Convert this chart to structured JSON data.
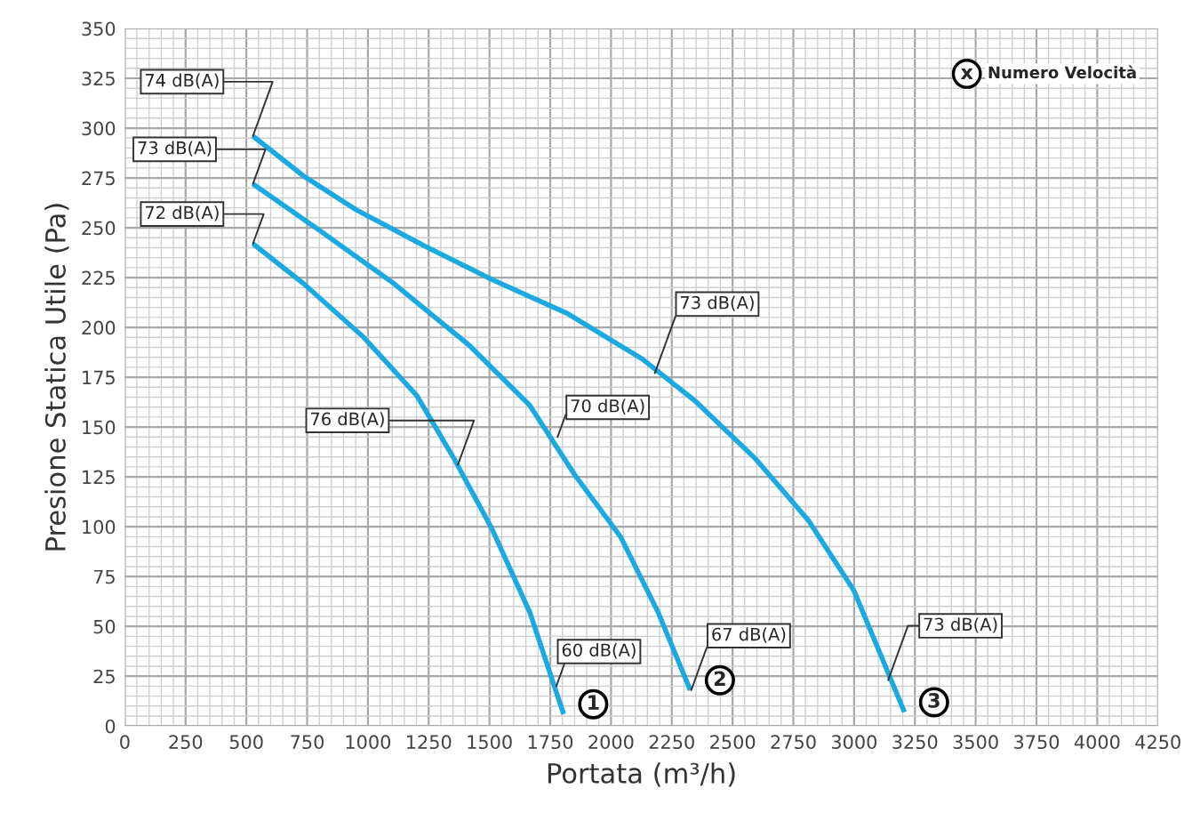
{
  "chart_data": {
    "type": "line",
    "xlabel": "Portata (m³/h)",
    "ylabel": "Presione Statica Utile (Pa)",
    "xlim": [
      0,
      4250
    ],
    "ylim": [
      0,
      350
    ],
    "xticks": [
      0,
      250,
      500,
      750,
      1000,
      1250,
      1500,
      1750,
      2000,
      2250,
      2500,
      2750,
      3000,
      3250,
      3500,
      3750,
      4000,
      4250
    ],
    "yticks": [
      0,
      25,
      50,
      75,
      100,
      125,
      150,
      175,
      200,
      225,
      250,
      275,
      300,
      325,
      350
    ],
    "grid": true,
    "marker": "none",
    "line_style": "solid",
    "series": [
      {
        "name": "1",
        "color": "#1aa9e0",
        "x": [
          527,
          735,
          983,
          1200,
          1355,
          1510,
          1666,
          1805
        ],
        "values": [
          242,
          222,
          195,
          166,
          134,
          99,
          57,
          6
        ]
      },
      {
        "name": "2",
        "color": "#1aa9e0",
        "x": [
          527,
          797,
          1107,
          1417,
          1665,
          1851,
          2039,
          2194,
          2326
        ],
        "values": [
          272,
          249,
          222,
          191,
          161,
          126,
          95,
          57,
          18
        ]
      },
      {
        "name": "3",
        "color": "#1aa9e0",
        "x": [
          527,
          735,
          952,
          1231,
          1510,
          1820,
          2130,
          2347,
          2595,
          2813,
          2999,
          3207
        ],
        "values": [
          296,
          276,
          259,
          241,
          224,
          207,
          184,
          163,
          134,
          103,
          68,
          7
        ]
      }
    ],
    "annotations": [
      {
        "text": "74 dB(A)",
        "x": 527,
        "y": 296
      },
      {
        "text": "73 dB(A)",
        "x": 527,
        "y": 272
      },
      {
        "text": "72 dB(A)",
        "x": 527,
        "y": 242
      },
      {
        "text": "76 dB(A)",
        "x": 1370,
        "y": 131
      },
      {
        "text": "60 dB(A)",
        "x": 1775,
        "y": 20
      },
      {
        "text": "70 dB(A)",
        "x": 1780,
        "y": 145
      },
      {
        "text": "67 dB(A)",
        "x": 2330,
        "y": 18
      },
      {
        "text": "73 dB(A)",
        "x": 2180,
        "y": 177
      },
      {
        "text": "73 dB(A)",
        "x": 3140,
        "y": 23
      },
      "x",
      "Numero Velocità"
    ]
  }
}
